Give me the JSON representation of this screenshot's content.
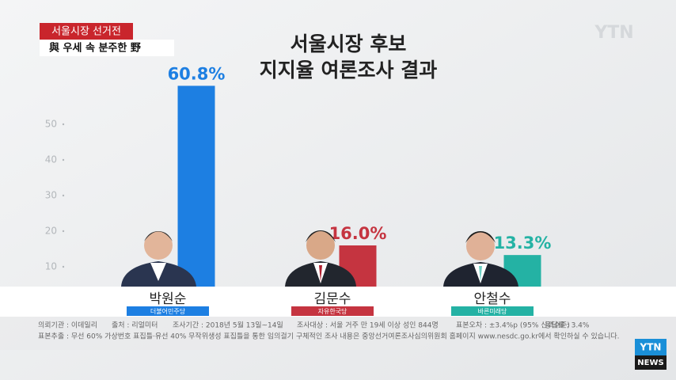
{
  "header": {
    "tag": "서울시장 선거전",
    "headline": "與 우세 속 분주한 野"
  },
  "logo": "YTN",
  "corner_logo": [
    "YTN",
    "NEWS"
  ],
  "chart_data": {
    "type": "bar",
    "title": [
      "서울시장 후보",
      "지지율 여론조사 결과"
    ],
    "categories": [
      "박원순",
      "김문수",
      "안철수"
    ],
    "parties": [
      "더불어민주당",
      "자유한국당",
      "바른미래당"
    ],
    "values": [
      60.8,
      16.0,
      13.3
    ],
    "value_labels": [
      "60.8%",
      "16.0%",
      "13.3%"
    ],
    "colors": [
      "#1d7fe2",
      "#c53440",
      "#24b2a4"
    ],
    "ylim": [
      0,
      60
    ],
    "yticks": [
      10,
      20,
      30,
      40,
      50
    ]
  },
  "footnotes": [
    [
      "의뢰기관 : 이데일리",
      "출처 : 리얼미터",
      "조사기간 : 2018년 5월 13일~14일",
      "조사대상 : 서울 거주 만 19세 이상 성인 844명",
      "표본오차 : ±3.4%p (95% 신뢰수준)",
      "응답률 : 3.4%"
    ],
    [
      "표본추출 : 무선 60% 가상번호 표집틀·유선 40% 무작위생성 표집틀을 통한 임의걸기",
      "구체적인 조사 내용은 중앙선거여론조사심의위원회 홈페이지 www.nesdc.go.kr에서 확인하실 수 있습니다."
    ]
  ]
}
